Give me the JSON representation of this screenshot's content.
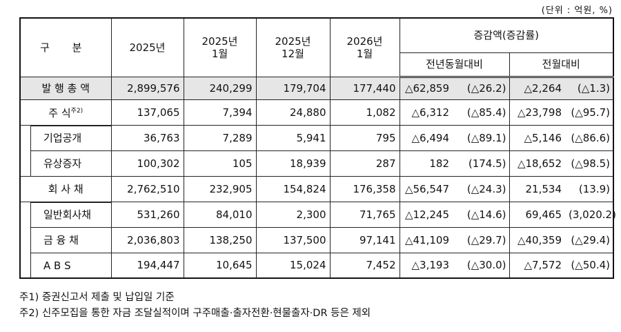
{
  "unit_note": "(단위 : 억원, %)",
  "table": {
    "header": {
      "division": "구 분",
      "col_2025": "2025년",
      "col_2025_1": "2025년\n1월",
      "col_2025_12": "2025년\n12월",
      "col_2026_1": "2026년\n1월",
      "change": "증감액(증감률)",
      "yoy": "전년동월대비",
      "mom": "전월대비"
    },
    "rows": [
      {
        "label": "발 행 총 액",
        "cells": [
          "2,899,576",
          "240,299",
          "179,704",
          "177,440",
          "△62,859",
          "(△26.2)",
          "△2,264",
          "(△1.3)"
        ]
      },
      {
        "label": "주 식",
        "note": "주2)",
        "cells": [
          "137,065",
          "7,394",
          "24,880",
          "1,082",
          "△6,312",
          "(△85.4)",
          "△23,798",
          "(△95.7)"
        ]
      },
      {
        "label": "기업공개",
        "cells": [
          "36,763",
          "7,289",
          "5,941",
          "795",
          "△6,494",
          "(△89.1)",
          "△5,146",
          "(△86.6)"
        ]
      },
      {
        "label": "유상증자",
        "cells": [
          "100,302",
          "105",
          "18,939",
          "287",
          "182",
          "(174.5)",
          "△18,652",
          "(△98.5)"
        ]
      },
      {
        "label": "회 사 채",
        "cells": [
          "2,762,510",
          "232,905",
          "154,824",
          "176,358",
          "△56,547",
          "(△24.3)",
          "21,534",
          "(13.9)"
        ]
      },
      {
        "label": "일반회사채",
        "cells": [
          "531,260",
          "84,010",
          "2,300",
          "71,765",
          "△12,245",
          "(△14.6)",
          "69,465",
          "(3,020.2)"
        ]
      },
      {
        "label": "금 융 채",
        "cells": [
          "2,036,803",
          "138,250",
          "137,500",
          "97,141",
          "△41,109",
          "(△29.7)",
          "△40,359",
          "(△29.4)"
        ]
      },
      {
        "label": "A B S",
        "cells": [
          "194,447",
          "10,645",
          "15,024",
          "7,452",
          "△3,193",
          "(△30.0)",
          "△7,572",
          "(△50.4)"
        ]
      }
    ]
  },
  "notes": [
    "주1) 증권신고서 제출 및 납입일 기준",
    "주2) 신주모집을 통한 자금 조달실적이며 구주매출·출자전환·현물출자·DR 등은 제외"
  ]
}
